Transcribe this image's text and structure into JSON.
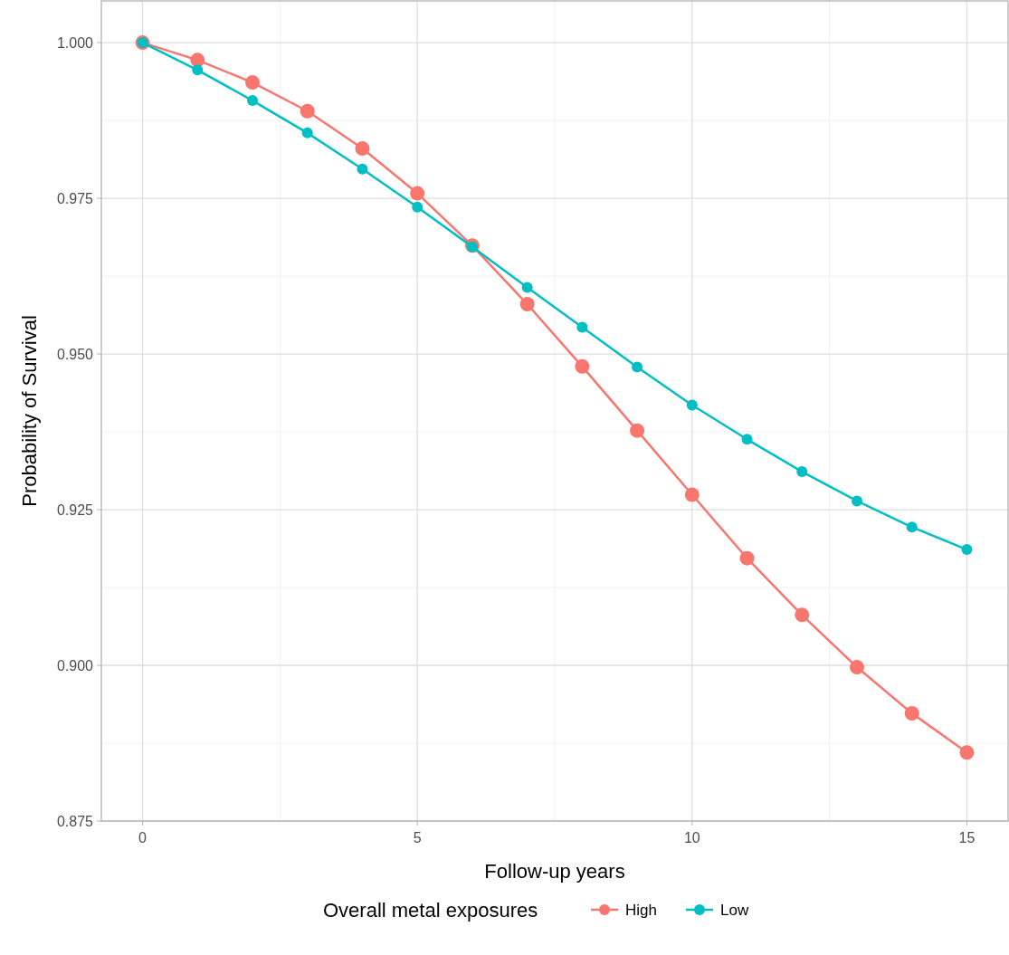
{
  "chart_data": {
    "type": "line",
    "xlabel": "Follow-up years",
    "ylabel": "Probability of Survival",
    "legend_title": "Overall metal exposures",
    "x": [
      0,
      1,
      2,
      3,
      4,
      5,
      6,
      7,
      8,
      9,
      10,
      11,
      12,
      13,
      14,
      15
    ],
    "series": [
      {
        "name": "High",
        "color": "#f8766d",
        "values": [
          1.0,
          0.9972,
          0.9936,
          0.989,
          0.983,
          0.9758,
          0.9674,
          0.958,
          0.948,
          0.9377,
          0.9274,
          0.9172,
          0.9081,
          0.8997,
          0.8923,
          0.886
        ]
      },
      {
        "name": "Low",
        "color": "#00bfc4",
        "values": [
          1.0,
          0.9956,
          0.9907,
          0.9855,
          0.9797,
          0.9736,
          0.9672,
          0.9607,
          0.9543,
          0.9479,
          0.9418,
          0.9363,
          0.9311,
          0.9264,
          0.9222,
          0.9186
        ]
      }
    ],
    "xlim": [
      -0.75,
      15.75
    ],
    "xticks": [
      0,
      5,
      10,
      15
    ],
    "ylim": [
      0.875,
      1.0067
    ],
    "yticks": [
      {
        "value": 0.875,
        "label": "0.875"
      },
      {
        "value": 0.9,
        "label": "0.900"
      },
      {
        "value": 0.925,
        "label": "0.925"
      },
      {
        "value": 0.95,
        "label": "0.950"
      },
      {
        "value": 0.975,
        "label": "0.975"
      },
      {
        "value": 1.0,
        "label": "1.000"
      }
    ],
    "grid": true,
    "legend": "bottom",
    "marker": "circle",
    "line_style": "solid"
  }
}
